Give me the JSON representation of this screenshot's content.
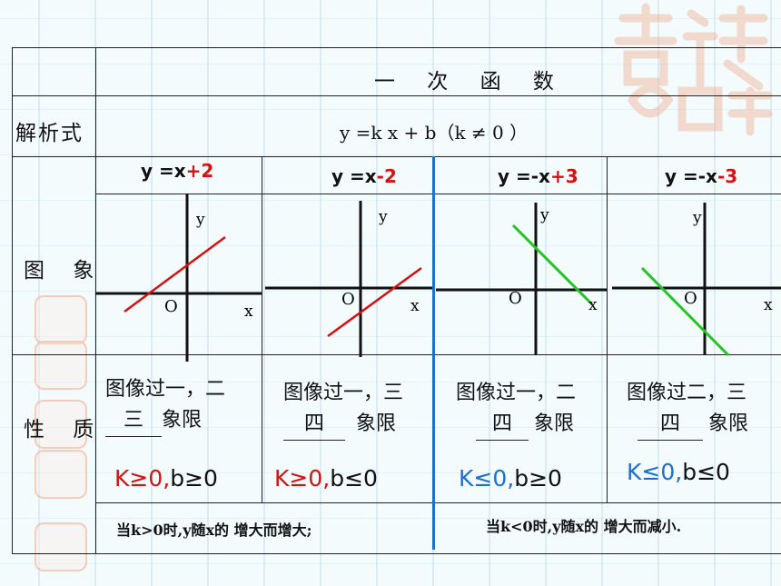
{
  "header": {
    "title": "一 次 函 数"
  },
  "rows": {
    "analytic_label": "解析式",
    "graph_label": "图 象",
    "property_label": "性 质"
  },
  "formula": "y =k x + b（k ≠ 0 ）",
  "functions": [
    {
      "base": "y =x",
      "const": "+2",
      "k_part": "K≥0,",
      "b_part": "b≥0",
      "quadrants_pre": "图像过一，二",
      "quadrants_post": "三",
      "suffix": "象限",
      "k_color": "#d81010",
      "line_color": "#d81010"
    },
    {
      "base": "y =x",
      "const": "-2",
      "k_part": "K≥0,",
      "b_part": "b≤0",
      "quadrants_pre": "图像过一，三",
      "quadrants_post": "四",
      "suffix": "象限",
      "k_color": "#d81010",
      "line_color": "#d81010"
    },
    {
      "base": "y =-x",
      "const": "+3",
      "k_part": "K≤0,",
      "b_part": "b≥0",
      "quadrants_pre": "图像过一，二",
      "quadrants_post": "四",
      "suffix": "象限",
      "k_color": "#1f6fd0",
      "line_color": "#22c622"
    },
    {
      "base": "y =-x",
      "const": "-3",
      "k_part": "K≤0,",
      "b_part": "b≤0",
      "quadrants_pre": "图像过二，三",
      "quadrants_post": "四",
      "suffix": "象限",
      "k_color": "#1f6fd0",
      "line_color": "#22c622"
    }
  ],
  "axis": {
    "x": "x",
    "y": "y",
    "origin": "O"
  },
  "conclusions": {
    "positive": "当k>0时,y随x的 增大而增大;",
    "negative": "当k<0时,y随x的 增大而减小."
  },
  "decor": {
    "stamp_text": "吉祥如意"
  }
}
